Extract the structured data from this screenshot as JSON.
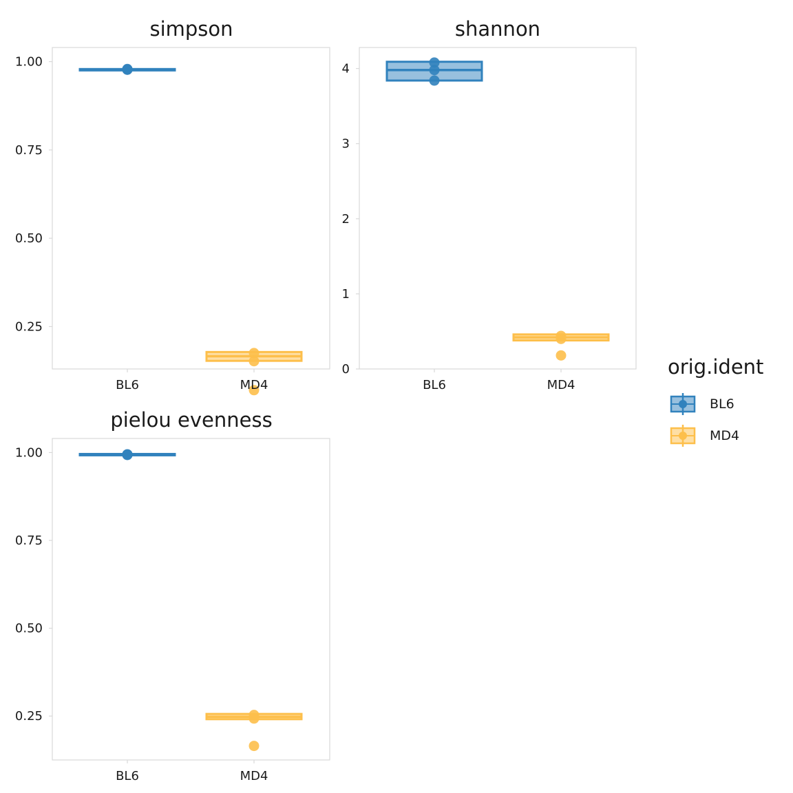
{
  "colors": {
    "BL6": "#3182bd",
    "MD4": "#fdbf4b"
  },
  "legend": {
    "title": "orig.ident",
    "items": [
      {
        "label": "BL6",
        "key": "BL6"
      },
      {
        "label": "MD4",
        "key": "MD4"
      }
    ]
  },
  "chart_data": [
    {
      "type": "boxplot",
      "title": "simpson",
      "categories": [
        "BL6",
        "MD4"
      ],
      "ylim": [
        0.13,
        1.04
      ],
      "yticks": [
        0.25,
        0.5,
        0.75,
        1.0
      ],
      "ytick_labels": [
        "0.25",
        "0.50",
        "0.75",
        "1.00"
      ],
      "series": [
        {
          "category": "BL6",
          "q1": 0.977,
          "median": 0.978,
          "q3": 0.979,
          "points": [
            0.978,
            0.979,
            0.977
          ]
        },
        {
          "category": "MD4",
          "q1": 0.153,
          "median": 0.166,
          "q3": 0.178,
          "points": [
            0.175,
            0.152,
            0.07
          ]
        }
      ]
    },
    {
      "type": "boxplot",
      "title": "shannon",
      "categories": [
        "BL6",
        "MD4"
      ],
      "ylim": [
        0.0,
        4.28
      ],
      "yticks": [
        0,
        1,
        2,
        3,
        4
      ],
      "ytick_labels": [
        "0",
        "1",
        "2",
        "3",
        "4"
      ],
      "series": [
        {
          "category": "BL6",
          "q1": 3.84,
          "median": 3.98,
          "q3": 4.09,
          "points": [
            4.08,
            3.98,
            3.84
          ]
        },
        {
          "category": "MD4",
          "q1": 0.38,
          "median": 0.42,
          "q3": 0.46,
          "points": [
            0.44,
            0.4,
            0.18
          ]
        }
      ]
    },
    {
      "type": "boxplot",
      "title": "pielou evenness",
      "categories": [
        "BL6",
        "MD4"
      ],
      "ylim": [
        0.125,
        1.04
      ],
      "yticks": [
        0.25,
        0.5,
        0.75,
        1.0
      ],
      "ytick_labels": [
        "0.25",
        "0.50",
        "0.75",
        "1.00"
      ],
      "series": [
        {
          "category": "BL6",
          "q1": 0.993,
          "median": 0.994,
          "q3": 0.996,
          "points": [
            0.995,
            0.993,
            0.994
          ]
        },
        {
          "category": "MD4",
          "q1": 0.241,
          "median": 0.248,
          "q3": 0.256,
          "points": [
            0.253,
            0.243,
            0.165
          ]
        }
      ]
    }
  ]
}
